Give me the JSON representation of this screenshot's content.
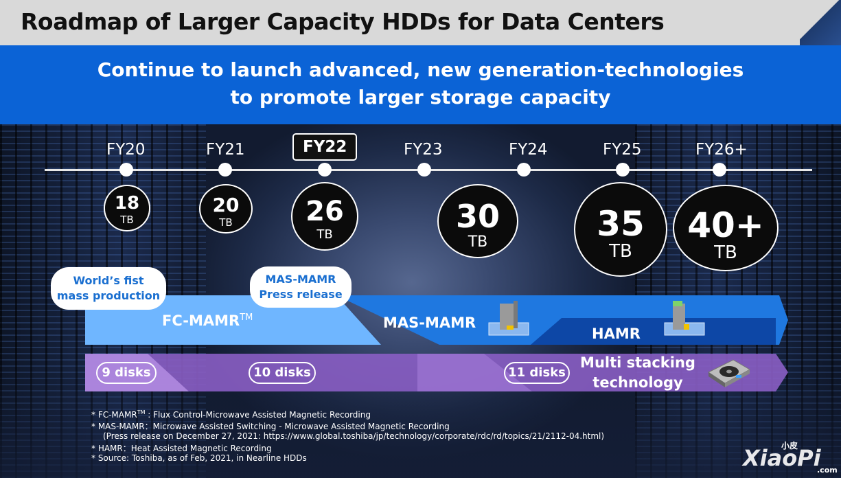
{
  "title": "Roadmap of Larger Capacity HDDs for Data Centers",
  "banner": {
    "line1": "Continue to launch advanced, new generation-technologies",
    "line2": "to promote larger storage capacity"
  },
  "timeline": [
    {
      "year": "FY20",
      "capacity": "18",
      "unit": "TB"
    },
    {
      "year": "FY21",
      "capacity": "20",
      "unit": "TB"
    },
    {
      "year": "FY22",
      "capacity": "26",
      "unit": "TB",
      "highlight": true
    },
    {
      "year": "FY23",
      "capacity": "30",
      "unit": "TB"
    },
    {
      "year": "FY24"
    },
    {
      "year": "FY25",
      "capacity": "35",
      "unit": "TB"
    },
    {
      "year": "FY26+",
      "capacity": "40+",
      "unit": "TB"
    }
  ],
  "technologies": {
    "fc_mamr": "FC-MAMR",
    "fc_mamr_tm": "TM",
    "mas_mamr": "MAS-MAMR",
    "hamr": "HAMR"
  },
  "callouts": {
    "first_line1": "World’s fist",
    "first_line2": "mass production",
    "press_line1": "MAS-MAMR",
    "press_line2": "Press release"
  },
  "disks": {
    "d9": "9 disks",
    "d10": "10 disks",
    "d11": "11 disks",
    "multi_line1": "Multi stacking",
    "multi_line2": "technology"
  },
  "footnotes": {
    "f1_a": "* FC-MAMR",
    "f1_tm": "TM",
    "f1_b": " : Flux Control-Microwave Assisted Magnetic Recording",
    "f2": "* MAS-MAMR：Microwave Assisted Switching - Microwave Assisted Magnetic Recording",
    "f3": "(Press release on December 27, 2021: https://www.global.toshiba/jp/technology/corporate/rdc/rd/topics/21/2112-04.html)",
    "f4": "* HAMR：Heat Assisted Magnetic Recording",
    "f5": "* Source: Toshiba, as of Feb, 2021, in Nearline HDDs"
  },
  "watermark": {
    "small": "小皮",
    "big": "XiaoPi",
    "domain": ".com"
  },
  "colors": {
    "blue_banner": "#0b63d6",
    "light_blue_band": "#6fb6ff",
    "mid_blue_band": "#1f78e0",
    "dark_blue_band": "#0d47a6",
    "purple_band": "#9b6cd0",
    "bubble_text": "#1a6fd0"
  }
}
